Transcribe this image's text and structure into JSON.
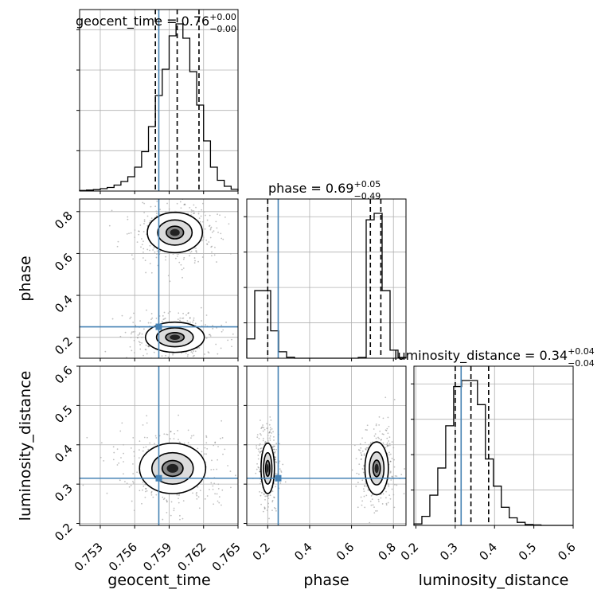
{
  "chart_data": {
    "type": "corner",
    "parameters": [
      {
        "name": "geocent_time",
        "axis_label": "geocent_time",
        "title_main": "geocent_time = 0.76",
        "title_sup": "+0.00",
        "title_sub": "−0.00",
        "range": [
          0.7512,
          0.765
        ],
        "ticks": [
          0.753,
          0.756,
          0.759,
          0.762,
          0.765
        ],
        "tick_labels": [
          "0.753",
          "0.756",
          "0.759",
          "0.762",
          "0.765"
        ],
        "truth": 0.7581,
        "quantiles": [
          0.7578,
          0.7597,
          0.7616
        ],
        "hist_bins": [
          0.7512,
          0.7518,
          0.7524,
          0.753,
          0.7536,
          0.7542,
          0.7548,
          0.7554,
          0.756,
          0.7566,
          0.7572,
          0.7578,
          0.7584,
          0.759,
          0.7596,
          0.7602,
          0.7608,
          0.7614,
          0.762,
          0.7626,
          0.7632,
          0.7638,
          0.7644,
          0.765
        ],
        "hist_counts": [
          0.5,
          0.8,
          1.2,
          2,
          3,
          5,
          8,
          12,
          20,
          33,
          54,
          80,
          102,
          130,
          140,
          128,
          100,
          72,
          42,
          20,
          9,
          4,
          1.5
        ]
      },
      {
        "name": "phase",
        "axis_label": "phase",
        "title_main": "phase = 0.69",
        "title_sup": "+0.05",
        "title_sub": "−0.49",
        "range": [
          0.1,
          0.86
        ],
        "ticks": [
          0.2,
          0.4,
          0.6,
          0.8
        ],
        "tick_labels": [
          "0.2",
          "0.4",
          "0.6",
          "0.8"
        ],
        "truth": 0.25,
        "quantiles": [
          0.2,
          0.69,
          0.74
        ],
        "hist_bins": [
          0.1,
          0.138,
          0.176,
          0.214,
          0.252,
          0.29,
          0.328,
          0.366,
          0.404,
          0.442,
          0.48,
          0.518,
          0.556,
          0.594,
          0.632,
          0.67,
          0.708,
          0.746,
          0.784,
          0.822,
          0.86
        ],
        "hist_counts": [
          12,
          42,
          42,
          17,
          4,
          0.6,
          0,
          0,
          0,
          0,
          0,
          0,
          0,
          0,
          0.5,
          86,
          90,
          42,
          5,
          0.5
        ]
      },
      {
        "name": "luminosity_distance",
        "axis_label": "luminosity_distance",
        "title_main": "luminosity_distance = 0.34",
        "title_sup": "+0.04",
        "title_sub": "−0.04",
        "range": [
          0.195,
          0.6
        ],
        "ticks": [
          0.2,
          0.3,
          0.4,
          0.5,
          0.6
        ],
        "tick_labels": [
          "0.2",
          "0.3",
          "0.4",
          "0.5",
          "0.6"
        ],
        "truth": 0.315,
        "quantiles": [
          0.3,
          0.34,
          0.385
        ],
        "hist_bins": [
          0.195,
          0.2152,
          0.2354,
          0.2556,
          0.2758,
          0.296,
          0.3162,
          0.3364,
          0.3566,
          0.3768,
          0.397,
          0.4172,
          0.4374,
          0.4576,
          0.4778,
          0.498,
          0.5182,
          0.5384,
          0.5586,
          0.5788,
          0.599
        ],
        "hist_counts": [
          1,
          6,
          20,
          38,
          66,
          92,
          96,
          96,
          80,
          44,
          26,
          12,
          5,
          2,
          0.6,
          0.3,
          0,
          0,
          0,
          0
        ]
      }
    ],
    "pair_plots": [
      {
        "x": "geocent_time",
        "y": "phase",
        "blobs": [
          {
            "cx": 0.7595,
            "cy": 0.7,
            "sx": 0.0015,
            "sy": 0.06
          },
          {
            "cx": 0.7595,
            "cy": 0.2,
            "sx": 0.0016,
            "sy": 0.045
          }
        ]
      },
      {
        "x": "geocent_time",
        "y": "luminosity_distance",
        "blobs": [
          {
            "cx": 0.7593,
            "cy": 0.34,
            "sx": 0.0018,
            "sy": 0.04
          }
        ]
      },
      {
        "x": "phase",
        "y": "luminosity_distance",
        "blobs": [
          {
            "cx": 0.72,
            "cy": 0.34,
            "sx": 0.035,
            "sy": 0.042
          },
          {
            "cx": 0.2,
            "cy": 0.34,
            "sx": 0.02,
            "sy": 0.04
          }
        ]
      }
    ],
    "truth_color": "#4682b4",
    "grid": true
  }
}
